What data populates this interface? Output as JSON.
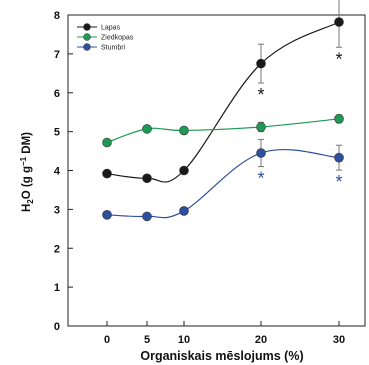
{
  "chart_data": {
    "type": "line",
    "xlabel": "Organiskais mēslojums (%)",
    "ylabel": "H2O (g g−1 DM)",
    "ylabel_parts": {
      "h": "H",
      "sub": "2",
      "o": "O (g g",
      "sup": "−1",
      "rest": " DM)"
    },
    "x_ticks": [
      "0",
      "5",
      "10",
      "20",
      "30"
    ],
    "y_ticks": [
      "0",
      "1",
      "2",
      "3",
      "4",
      "5",
      "6",
      "7",
      "8"
    ],
    "ylim": [
      0,
      8
    ],
    "legend_position": "top-left",
    "series": [
      {
        "name": "Lapas",
        "color": "#1a1a1a",
        "values": [
          3.92,
          3.8,
          4.0,
          6.75,
          7.82
        ],
        "errors": [
          0,
          0,
          0,
          0.5,
          0.65
        ],
        "markers": [
          "",
          "",
          "",
          "*",
          "*"
        ]
      },
      {
        "name": "Ziedkopas",
        "color": "#1e9a55",
        "values": [
          4.72,
          5.07,
          5.03,
          5.12,
          5.33
        ],
        "errors": [
          0,
          0,
          0,
          0.12,
          0.1
        ],
        "markers": [
          "",
          "",
          "",
          "",
          ""
        ]
      },
      {
        "name": "Stumbri",
        "color": "#2e4fa0",
        "values": [
          2.86,
          2.82,
          2.96,
          4.45,
          4.33
        ],
        "errors": [
          0,
          0,
          0,
          0.35,
          0.32
        ],
        "markers": [
          "",
          "",
          "",
          "*",
          "*"
        ]
      }
    ]
  }
}
